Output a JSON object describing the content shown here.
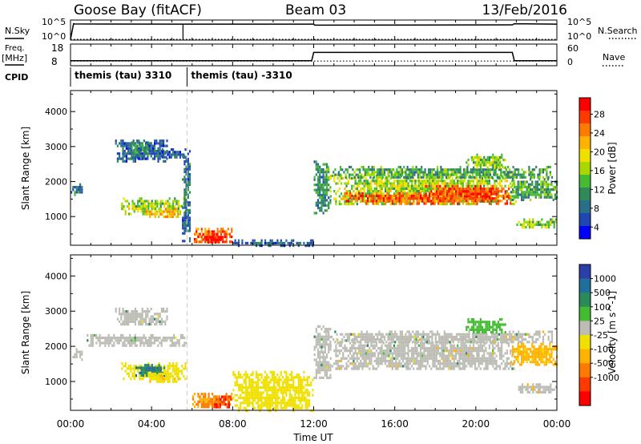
{
  "header": {
    "site": "Goose Bay (fitACF)",
    "beam": "Beam 03",
    "date": "13/Feb/2016"
  },
  "left_labels": {
    "nsky": "N.Sky",
    "nsky_hi": "10^5",
    "nsky_lo": "10^0",
    "freq": "Freq.",
    "freq_unit": "[MHz]",
    "freq_hi": "18",
    "freq_lo": "8",
    "cpid": "CPID"
  },
  "right_labels": {
    "nsearch": "N.Search",
    "nsearch_hi": "10^5",
    "nsearch_lo": "10^0",
    "nave": "Nave",
    "nave_hi": "60",
    "nave_lo": "0"
  },
  "cpid_segments": [
    {
      "label": "themis (tau) 3310",
      "start_hour": 0,
      "end_hour": 5.75
    },
    {
      "label": "themis (tau) -3310",
      "start_hour": 5.75,
      "end_hour": 24
    }
  ],
  "time_axis": {
    "title": "Time UT",
    "ticks": [
      "00:00",
      "04:00",
      "08:00",
      "12:00",
      "16:00",
      "20:00",
      "00:00"
    ]
  },
  "colorbars": {
    "power": {
      "title": "Power [dB]",
      "ticks": [
        "28",
        "24",
        "20",
        "16",
        "12",
        "8",
        "4"
      ],
      "colors": [
        "#ff0000",
        "#ff3a00",
        "#ff7a00",
        "#ffb300",
        "#f0e000",
        "#a8d800",
        "#44bb33",
        "#2f8a57",
        "#2b6e8a",
        "#1f46b3",
        "#0000ff"
      ]
    },
    "velocity": {
      "title": "Velocity [m s^-1]",
      "ticks": [
        "1000",
        "500",
        "100",
        "25",
        "-25",
        "-100",
        "-500",
        "-1000"
      ],
      "colors": [
        "#2c3fa8",
        "#1f6f9a",
        "#2a8a5a",
        "#44bb33",
        "#bdbdb6",
        "#f0e000",
        "#ffb300",
        "#ff7a00",
        "#ff3a00",
        "#ff0000"
      ]
    }
  },
  "chart_data": [
    {
      "type": "line",
      "title": "N.Sky / N.Search",
      "x_range_hours": [
        0,
        24
      ],
      "ylim_log": [
        0,
        5
      ],
      "series": [
        {
          "name": "N.Sky",
          "x": [
            0,
            0.15,
            0.2,
            5.5,
            5.55,
            12.0,
            12.05,
            21.8,
            21.9,
            24
          ],
          "y": [
            0,
            4.4,
            4.35,
            4.3,
            4.3,
            4.3,
            4.0,
            4.1,
            4.4,
            4.3
          ]
        },
        {
          "name": "N.Search",
          "x": [
            0,
            24
          ],
          "y": [
            0,
            0
          ]
        }
      ]
    },
    {
      "type": "line",
      "title": "Freq. / Nave",
      "x_range_hours": [
        0,
        24
      ],
      "ylim_freq": [
        8,
        18
      ],
      "ylim_nave": [
        0,
        60
      ],
      "series": [
        {
          "name": "Freq.",
          "x": [
            0,
            11.9,
            12.0,
            21.8,
            21.9,
            24
          ],
          "y": [
            10.2,
            10.2,
            14.5,
            14.5,
            10.2,
            10.2
          ]
        },
        {
          "name": "Nave",
          "x": [
            0,
            24
          ],
          "y": [
            12,
            12
          ]
        }
      ]
    },
    {
      "type": "heatmap",
      "title": "Power",
      "xlabel": "Time UT",
      "ylabel": "Slant Range [km]",
      "x_range_hours": [
        0,
        24
      ],
      "ylim": [
        180,
        4600
      ],
      "yticks": [
        1000,
        2000,
        3000,
        4000
      ],
      "zlim": [
        0,
        30
      ],
      "z_unit": "dB",
      "regions": [
        {
          "t": [
            2.2,
            4.8
          ],
          "r": [
            2600,
            3200
          ],
          "z": 6
        },
        {
          "t": [
            3.0,
            3.8
          ],
          "r": [
            2700,
            3150
          ],
          "z": 9
        },
        {
          "t": [
            4.5,
            5.7
          ],
          "r": [
            2700,
            2950
          ],
          "z": 5
        },
        {
          "t": [
            2.5,
            5.7
          ],
          "r": [
            1100,
            1550
          ],
          "z": 15
        },
        {
          "t": [
            3.7,
            5.3
          ],
          "r": [
            1000,
            1250
          ],
          "z": 20
        },
        {
          "t": [
            -0.1,
            0.6
          ],
          "r": [
            1650,
            1950
          ],
          "z": 8
        },
        {
          "t": [
            5.5,
            5.9
          ],
          "r": [
            300,
            2900
          ],
          "z": 7
        },
        {
          "t": [
            6.0,
            8.0
          ],
          "r": [
            260,
            680
          ],
          "z": 24
        },
        {
          "t": [
            6.5,
            7.5
          ],
          "r": [
            300,
            520
          ],
          "z": 30
        },
        {
          "t": [
            8.0,
            12.0
          ],
          "r": [
            200,
            350
          ],
          "z": 6
        },
        {
          "t": [
            12.0,
            12.8
          ],
          "r": [
            1100,
            2600
          ],
          "z": 9
        },
        {
          "t": [
            12.8,
            22.0
          ],
          "r": [
            1350,
            2200
          ],
          "z": 15
        },
        {
          "t": [
            13.5,
            21.8
          ],
          "r": [
            1400,
            1700
          ],
          "z": 25
        },
        {
          "t": [
            17.5,
            21.7
          ],
          "r": [
            1600,
            1900
          ],
          "z": 26
        },
        {
          "t": [
            12.5,
            23.8
          ],
          "r": [
            2100,
            2450
          ],
          "z": 11
        },
        {
          "t": [
            21.7,
            24.0
          ],
          "r": [
            1500,
            2100
          ],
          "z": 11
        },
        {
          "t": [
            22.0,
            24.0
          ],
          "r": [
            700,
            950
          ],
          "z": 14
        },
        {
          "t": [
            19.5,
            21.5
          ],
          "r": [
            2400,
            2800
          ],
          "z": 14
        }
      ]
    },
    {
      "type": "heatmap",
      "title": "Velocity",
      "xlabel": "Time UT",
      "ylabel": "Slant Range [km]",
      "x_range_hours": [
        0,
        24
      ],
      "ylim": [
        180,
        4600
      ],
      "yticks": [
        1000,
        2000,
        3000,
        4000
      ],
      "zlim": [
        -1000,
        1000
      ],
      "z_unit": "m s^-1",
      "regions": [
        {
          "t": [
            2.2,
            4.8
          ],
          "r": [
            2600,
            3100
          ],
          "z": 0
        },
        {
          "t": [
            0.8,
            5.7
          ],
          "r": [
            2050,
            2350
          ],
          "z": 0
        },
        {
          "t": [
            2.5,
            5.7
          ],
          "r": [
            1100,
            1550
          ],
          "z": -60
        },
        {
          "t": [
            3.2,
            4.6
          ],
          "r": [
            1200,
            1500
          ],
          "z": 250
        },
        {
          "t": [
            3.8,
            5.3
          ],
          "r": [
            1000,
            1250
          ],
          "z": -80
        },
        {
          "t": [
            -0.1,
            0.6
          ],
          "r": [
            1650,
            1950
          ],
          "z": 0
        },
        {
          "t": [
            6.0,
            8.0
          ],
          "r": [
            260,
            680
          ],
          "z": -300
        },
        {
          "t": [
            7.0,
            7.9
          ],
          "r": [
            300,
            600
          ],
          "z": -700
        },
        {
          "t": [
            8.0,
            12.0
          ],
          "r": [
            200,
            1300
          ],
          "z": -60
        },
        {
          "t": [
            12.0,
            12.8
          ],
          "r": [
            1100,
            2600
          ],
          "z": 0
        },
        {
          "t": [
            12.8,
            22.0
          ],
          "r": [
            1350,
            2200
          ],
          "z": 0
        },
        {
          "t": [
            12.5,
            23.8
          ],
          "r": [
            2100,
            2450
          ],
          "z": 0
        },
        {
          "t": [
            19.5,
            21.5
          ],
          "r": [
            2400,
            2800
          ],
          "z": 60
        },
        {
          "t": [
            21.7,
            24.0
          ],
          "r": [
            1500,
            2100
          ],
          "z": -150
        },
        {
          "t": [
            22.0,
            24.0
          ],
          "r": [
            700,
            950
          ],
          "z": 0
        }
      ]
    }
  ]
}
